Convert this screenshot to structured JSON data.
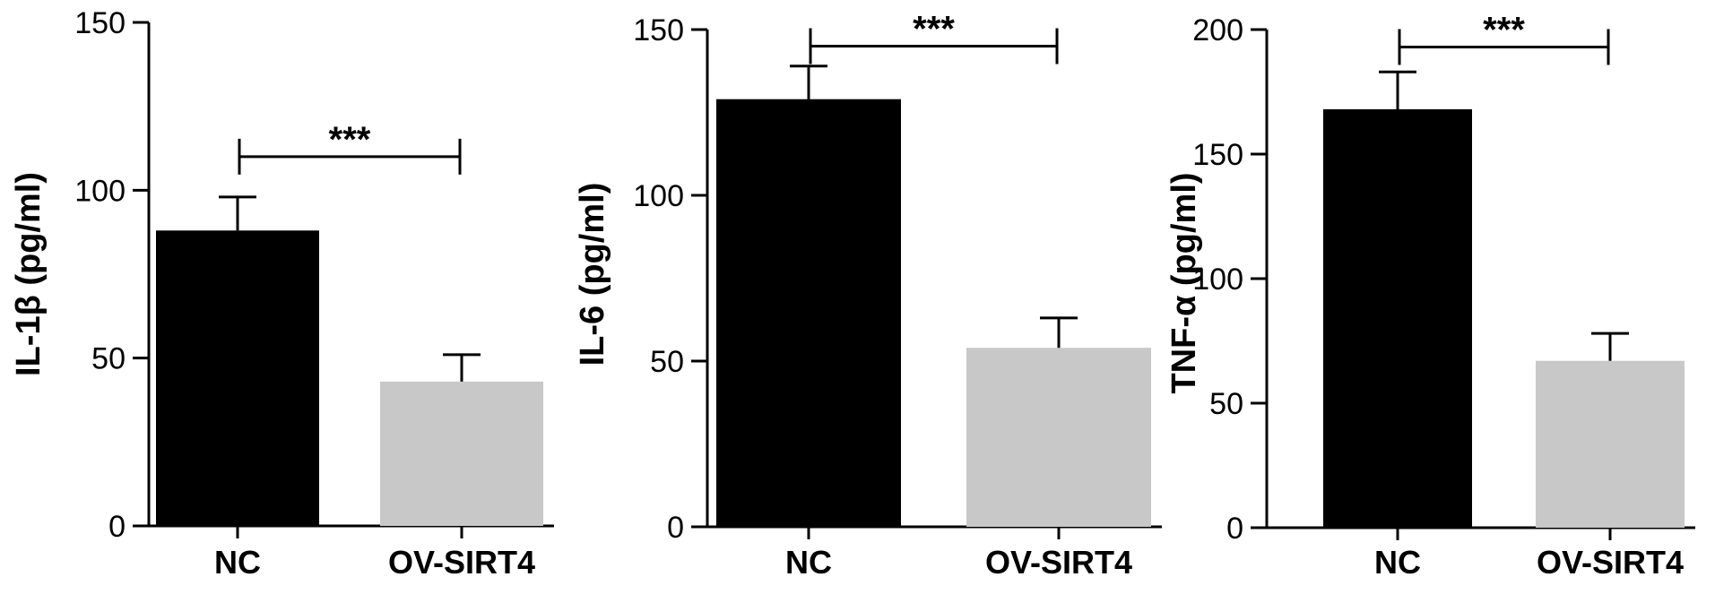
{
  "chart_data": [
    {
      "type": "bar",
      "ylabel": "IL-1β (pg/ml)",
      "categories": [
        "NC",
        "OV-SIRT4"
      ],
      "values": [
        88,
        43
      ],
      "errors": [
        10,
        8
      ],
      "colors": [
        "#000000",
        "#c8c8c8"
      ],
      "ylim": [
        0,
        150
      ],
      "yticks": [
        0,
        50,
        100,
        150
      ],
      "significance": {
        "label": "***",
        "y": 110
      }
    },
    {
      "type": "bar",
      "ylabel": "IL-6 (pg/ml)",
      "categories": [
        "NC",
        "OV-SIRT4"
      ],
      "values": [
        129,
        54
      ],
      "errors": [
        10,
        9
      ],
      "colors": [
        "#000000",
        "#c8c8c8"
      ],
      "ylim": [
        0,
        150
      ],
      "yticks": [
        0,
        50,
        100,
        150
      ],
      "significance": {
        "label": "***",
        "y": 145
      }
    },
    {
      "type": "bar",
      "ylabel": "TNF-α (pg/ml)",
      "categories": [
        "NC",
        "OV-SIRT4"
      ],
      "values": [
        168,
        67
      ],
      "errors": [
        15,
        11
      ],
      "colors": [
        "#000000",
        "#c8c8c8"
      ],
      "ylim": [
        0,
        200
      ],
      "yticks": [
        0,
        50,
        100,
        150,
        200
      ],
      "significance": {
        "label": "***",
        "y": 193
      }
    }
  ]
}
